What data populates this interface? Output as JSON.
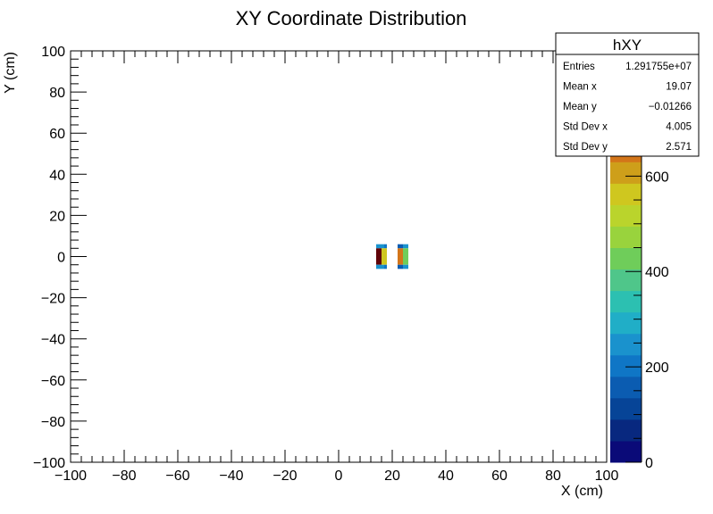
{
  "chart_data": {
    "type": "heatmap",
    "title": "XY Coordinate Distribution",
    "xlabel": "X (cm)",
    "ylabel": "Y (cm)",
    "xlim": [
      -100,
      100
    ],
    "ylim": [
      -100,
      100
    ],
    "x_ticks": [
      "−100",
      "−80",
      "−60",
      "−40",
      "−20",
      "0",
      "20",
      "40",
      "60",
      "80",
      "100"
    ],
    "y_ticks": [
      "−100",
      "−80",
      "−60",
      "−40",
      "−20",
      "0",
      "20",
      "40",
      "60",
      "80",
      "100"
    ],
    "zlim": [
      0,
      900
    ],
    "z_ticks": [
      "0",
      "200",
      "400",
      "600"
    ],
    "z_tick_values": [
      0,
      200,
      400,
      600
    ],
    "palette": [
      "#0a0a78",
      "#08287f",
      "#064497",
      "#0b5cb1",
      "#0f76c6",
      "#1a92cd",
      "#20aec7",
      "#2cc0b1",
      "#4fc68a",
      "#6fcd5a",
      "#99d33d",
      "#bad42c",
      "#cfc71f",
      "#ce9f1a",
      "#d37519",
      "#c9541e",
      "#c73a1c",
      "#a31f1c",
      "#7c0d10",
      "#600308"
    ],
    "cells": [
      {
        "x0": 14,
        "x1": 17,
        "y0": 4,
        "y1": 6,
        "color": "#1a92cd"
      },
      {
        "x0": 17,
        "x1": 18,
        "y0": 4,
        "y1": 6,
        "color": "#0f76c6"
      },
      {
        "x0": 14,
        "x1": 16,
        "y0": -4,
        "y1": 4,
        "color": "#600308"
      },
      {
        "x0": 16,
        "x1": 18,
        "y0": -4,
        "y1": 4,
        "color": "#cfc71f"
      },
      {
        "x0": 14,
        "x1": 17,
        "y0": -6,
        "y1": -4,
        "color": "#1a92cd"
      },
      {
        "x0": 17,
        "x1": 18,
        "y0": -6,
        "y1": -4,
        "color": "#0f76c6"
      },
      {
        "x0": 22,
        "x1": 24,
        "y0": 4,
        "y1": 6,
        "color": "#0b5cb1"
      },
      {
        "x0": 24,
        "x1": 26,
        "y0": 4,
        "y1": 6,
        "color": "#1a92cd"
      },
      {
        "x0": 22,
        "x1": 24,
        "y0": -4,
        "y1": 4,
        "color": "#d37519"
      },
      {
        "x0": 24,
        "x1": 26,
        "y0": -4,
        "y1": 4,
        "color": "#6fcd5a"
      },
      {
        "x0": 22,
        "x1": 24,
        "y0": -6,
        "y1": -4,
        "color": "#0b5cb1"
      },
      {
        "x0": 24,
        "x1": 26,
        "y0": -6,
        "y1": -4,
        "color": "#1a92cd"
      }
    ],
    "stats": {
      "name": "hXY",
      "rows": [
        {
          "label": "Entries",
          "value": "1.291755e+07"
        },
        {
          "label": "Mean x",
          "value": "19.07"
        },
        {
          "label": "Mean y",
          "value": "−0.01266"
        },
        {
          "label": "Std Dev x",
          "value": "4.005"
        },
        {
          "label": "Std Dev y",
          "value": "2.571"
        }
      ]
    }
  }
}
